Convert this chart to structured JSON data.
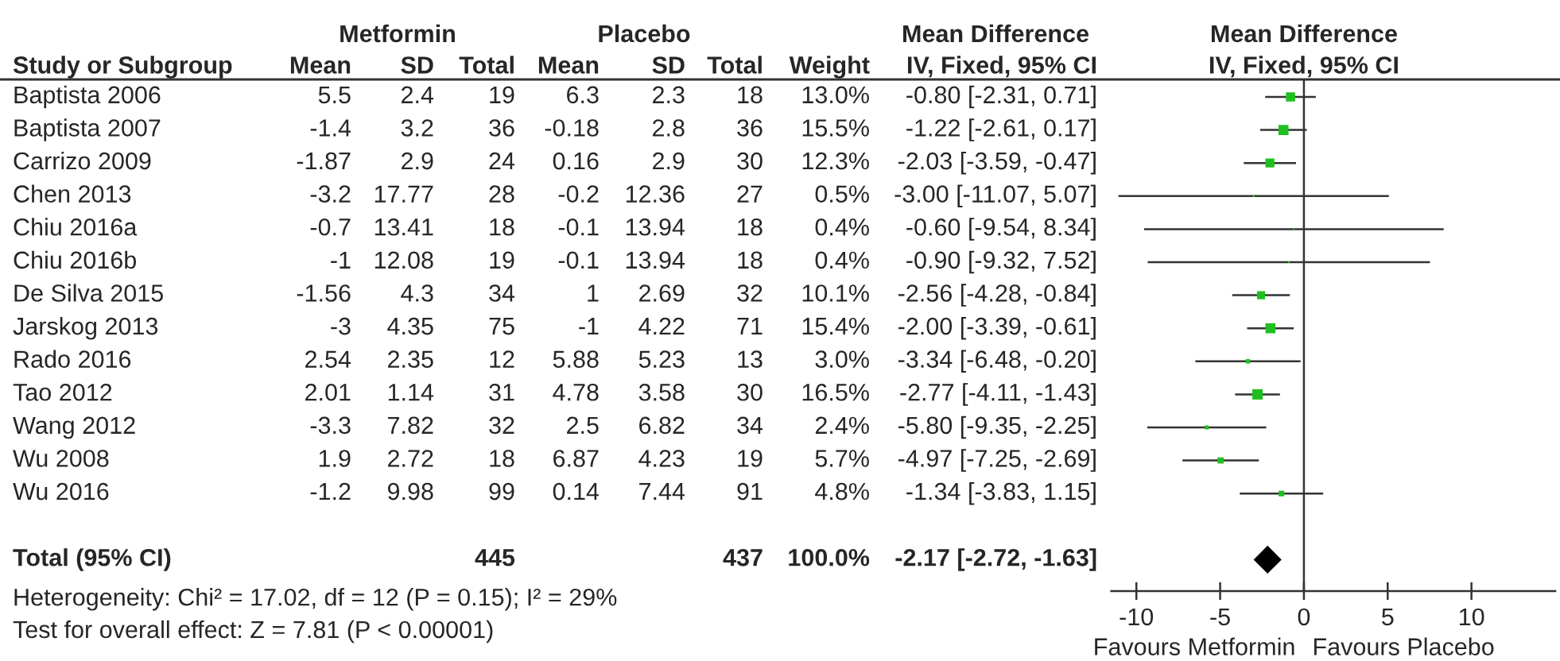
{
  "chart_data": [
    {
      "type": "other",
      "annotations": [
        "Metformin",
        "Placebo",
        "Study or Subgroup",
        "Mean",
        "SD",
        "Total",
        "Mean",
        "SD",
        "Total",
        "Weight",
        "5.5",
        "2.4",
        "19",
        "6.3",
        "2.3",
        "18",
        "13.0%",
        "-1.4",
        "3.2",
        "36",
        "-0.18",
        "2.8",
        "36",
        "15.5%",
        "-1.87",
        "2.9",
        "24",
        "0.16",
        "2.9",
        "30",
        "12.3%",
        "-3.2",
        "17.77",
        "28",
        "-0.2",
        "12.36",
        "27",
        "0.5%",
        "-0.7",
        "13.41",
        "18",
        "-0.1",
        "13.94",
        "18",
        "0.4%",
        "-1",
        "12.08",
        "19",
        "-0.1",
        "13.94",
        "18",
        "0.4%",
        "-1.56",
        "4.3",
        "34",
        "1",
        "2.69",
        "32",
        "10.1%",
        "-3",
        "4.35",
        "75",
        "-1",
        "4.22",
        "71",
        "15.4%",
        "2.54",
        "2.35",
        "12",
        "5.88",
        "5.23",
        "13",
        "3.0%",
        "2.01",
        "1.14",
        "31",
        "4.78",
        "3.58",
        "30",
        "16.5%",
        "-3.3",
        "7.82",
        "32",
        "2.5",
        "6.82",
        "34",
        "2.4%",
        "1.9",
        "2.72",
        "18",
        "6.87",
        "4.23",
        "19",
        "5.7%",
        "-1.2",
        "9.98",
        "99",
        "0.14",
        "7.44",
        "91",
        "4.8%",
        "445",
        "437",
        "100.0%",
        "-2.17 [-2.72, -1.63]",
        "Heterogeneity: Chi² = 17.02, df = 12 (P = 0.15); I² = 29%",
        "Test for overall effect: Z = 7.81 (P < 0.00001)"
      ]
    },
    {
      "type": "scatter",
      "orientation": "horizontal",
      "tick_labels": "x",
      "title": "Mean Difference",
      "subtitle": "IV, Fixed, 95% CI",
      "categories": [
        "Baptista 2006",
        "Baptista 2007",
        "Carrizo 2009",
        "Chen 2013",
        "Chiu 2016a",
        "Chiu 2016b",
        "De Silva 2015",
        "Jarskog 2013",
        "Rado 2016",
        "Tao 2012",
        "Wang 2012",
        "Wu 2008",
        "Wu 2016",
        null,
        "Total (95% CI)"
      ],
      "series": [
        {
          "type": "bubble",
          "marker": "square",
          "color": "#1fbf1f",
          "values": [
            -0.8,
            -1.22,
            -2.03,
            -3.0,
            -0.6,
            -0.9,
            -2.56,
            -2.0,
            -3.34,
            -2.77,
            -5.8,
            -4.97,
            -1.34,
            null,
            null
          ],
          "errors": [
            [
              -2.31,
              0.71
            ],
            [
              -2.61,
              0.17
            ],
            [
              -3.59,
              -0.47
            ],
            [
              -11.07,
              5.07
            ],
            [
              -9.54,
              8.34
            ],
            [
              -9.32,
              7.52
            ],
            [
              -4.28,
              -0.84
            ],
            [
              -3.39,
              -0.61
            ],
            [
              -6.48,
              -0.2
            ],
            [
              -4.11,
              -1.43
            ],
            [
              -9.35,
              -2.25
            ],
            [
              -7.25,
              -2.69
            ],
            [
              -3.83,
              1.15
            ],
            null,
            null
          ],
          "sizes": [
            0.79,
            0.94,
            0.75,
            0.03,
            0.02,
            0.02,
            0.61,
            0.93,
            0.18,
            1,
            0.15,
            0.35,
            0.29,
            null,
            null
          ],
          "value_labels": [
            "-0.80 [-2.31, 0.71]",
            "-1.22 [-2.61, 0.17]",
            "-2.03 [-3.59, -0.47]",
            "-3.00 [-11.07, 5.07]",
            "-0.60 [-9.54, 8.34]",
            "-0.90 [-9.32, 7.52]",
            "-2.56 [-4.28, -0.84]",
            "-2.00 [-3.39, -0.61]",
            "-3.34 [-6.48, -0.20]",
            "-2.77 [-4.11, -1.43]",
            "-5.80 [-9.35, -2.25]",
            "-4.97 [-7.25, -2.69]",
            "-1.34 [-3.83, 1.15]",
            null,
            null
          ]
        },
        {
          "marker": "diamond",
          "color": "#000000",
          "values": [
            null,
            null,
            null,
            null,
            null,
            null,
            null,
            null,
            null,
            null,
            null,
            null,
            null,
            null,
            -2.17
          ]
        }
      ],
      "xlim": [
        -11.5,
        15
      ],
      "xticks": [
        -10,
        -5,
        0,
        5,
        10
      ],
      "ref_lines": [
        {
          "axis": "x",
          "value": 0,
          "color": "#333333"
        }
      ],
      "annotations": [
        "Mean Difference",
        "IV, Fixed, 95% CI",
        "Favours Metformin",
        "Favours Placebo"
      ]
    }
  ]
}
